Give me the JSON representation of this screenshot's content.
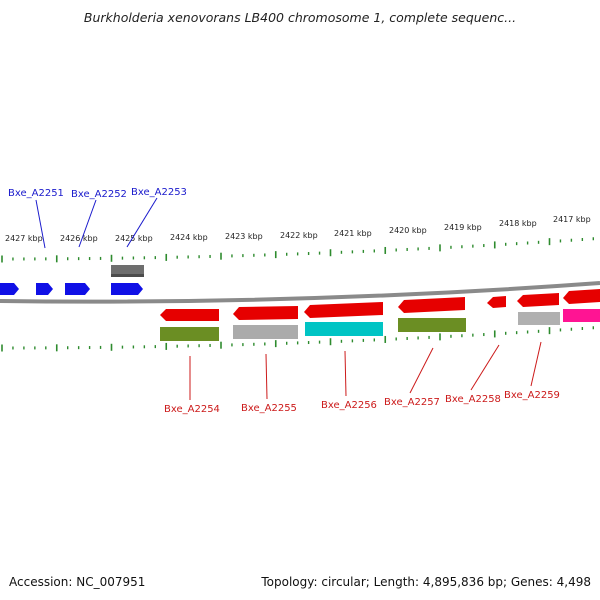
{
  "title": "Burkholderia xenovorans LB400 chromosome 1, complete sequenc...",
  "footer": {
    "accession": "Accession: NC_007951",
    "summary": "Topology: circular; Length: 4,895,836 bp; Genes: 4,498"
  },
  "scale_labels": [
    "2427 kbp",
    "2426 kbp",
    "2425 kbp",
    "2424 kbp",
    "2423 kbp",
    "2422 kbp",
    "2421 kbp",
    "2420 kbp",
    "2419 kbp",
    "2418 kbp",
    "2417 kbp"
  ],
  "colors": {
    "backbone": "#808080",
    "tick": "#2e8b2e",
    "forward_gene": "#1010e6",
    "reverse_gene": "#e60000",
    "label_forward": "#1a1acc",
    "label_reverse": "#cc1a1a",
    "dark_gray": "#707070",
    "light_gray": "#b0b0b0",
    "olive": "#6b8e23",
    "cyan": "#00c4c4",
    "magenta": "#ff1493"
  },
  "top_labels": [
    "Bxe_A2251",
    "Bxe_A2252",
    "Bxe_A2253"
  ],
  "bottom_labels": [
    "Bxe_A2254",
    "Bxe_A2255",
    "Bxe_A2256",
    "Bxe_A2257",
    "Bxe_A2258",
    "Bxe_A2259"
  ]
}
